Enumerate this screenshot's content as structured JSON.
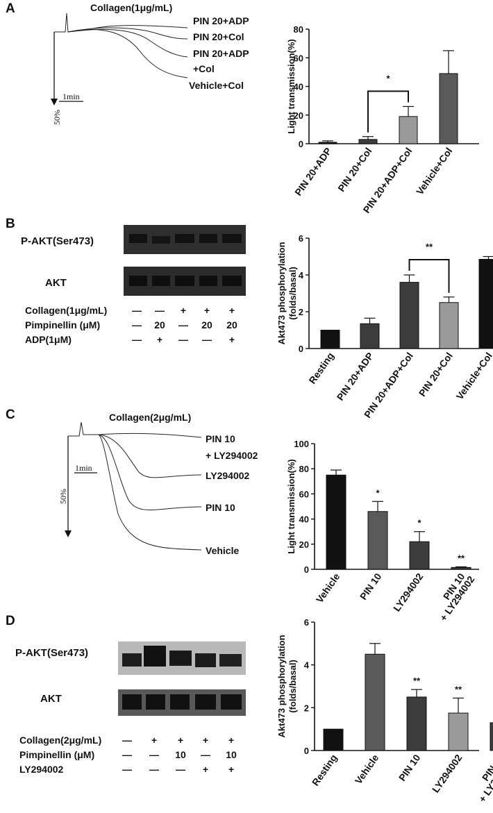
{
  "colors": {
    "black": "#111111",
    "dark_gray": "#3c3c3c",
    "mid_gray": "#5a5a5a",
    "light_gray": "#9a9a9a",
    "blot_band": "#2a2a2a"
  },
  "panels": {
    "A": {
      "label": "A",
      "trace_title": "Collagen(1μg/mL)",
      "time_scale": "1min",
      "scale_bar": "50%",
      "trace_labels": [
        "PIN 20+ADP",
        "PIN 20+Col",
        "PIN 20+ADP",
        "+Col",
        "Vehicle+Col"
      ]
    },
    "B": {
      "label": "B",
      "blot_labels": [
        "P-AKT(Ser473)",
        "AKT"
      ],
      "treatments": [
        {
          "name": "Collagen(1μg/mL)",
          "marks": [
            "—",
            "—",
            "+",
            "+",
            "+"
          ]
        },
        {
          "name": "Pimpinellin (μM)",
          "marks": [
            "—",
            "20",
            "—",
            "20",
            "20"
          ]
        },
        {
          "name": "ADP(1μM)",
          "marks": [
            "—",
            "+",
            "—",
            "—",
            "+"
          ]
        }
      ]
    },
    "C": {
      "label": "C",
      "trace_title": "Collagen(2μg/mL)",
      "time_scale": "1min",
      "scale_bar": "50%",
      "trace_labels": [
        "PIN 10",
        "+ LY294002",
        "LY294002",
        "PIN 10",
        "Vehicle"
      ]
    },
    "D": {
      "label": "D",
      "blot_labels": [
        "P-AKT(Ser473)",
        "AKT"
      ],
      "treatments": [
        {
          "name": "Collagen(2μg/mL)",
          "marks": [
            "—",
            "+",
            "+",
            "+",
            "+"
          ]
        },
        {
          "name": "Pimpinellin (μM)",
          "marks": [
            "—",
            "—",
            "10",
            "—",
            "10"
          ]
        },
        {
          "name": "LY294002",
          "marks": [
            "—",
            "—",
            "—",
            "+",
            "+"
          ]
        }
      ]
    }
  },
  "chart_data": [
    {
      "type": "bar",
      "panel": "A",
      "ylabel": "Light transmission(%)",
      "ylim": [
        0,
        80
      ],
      "yticks": [
        0,
        20,
        40,
        60,
        80
      ],
      "categories": [
        "PIN 20+ADP",
        "PIN 20+Col",
        "PIN 20+ADP+Col",
        "Vehicle+Col"
      ],
      "values": [
        1,
        3,
        19,
        49
      ],
      "errors": [
        1,
        2,
        7,
        16
      ],
      "bar_colors": [
        "#111111",
        "#3c3c3c",
        "#9a9a9a",
        "#5a5a5a"
      ],
      "significance": [
        {
          "from": 1,
          "to": 2,
          "label": "*"
        }
      ]
    },
    {
      "type": "bar",
      "panel": "B",
      "ylabel": "Akt473 phosphorylation (folds/basal)",
      "ylim": [
        0,
        6
      ],
      "yticks": [
        0,
        2,
        4,
        6
      ],
      "categories": [
        "Resting",
        "PIN 20+ADP",
        "PIN 20+ADP+Col",
        "PIN 20+Col",
        "Vehicle+Col"
      ],
      "values": [
        1.0,
        1.35,
        3.6,
        2.5,
        4.85
      ],
      "errors": [
        0,
        0.3,
        0.4,
        0.3,
        0.15
      ],
      "bar_colors": [
        "#111111",
        "#3c3c3c",
        "#3c3c3c",
        "#9a9a9a",
        "#111111"
      ],
      "significance": [
        {
          "from": 2,
          "to": 3,
          "label": "**"
        }
      ]
    },
    {
      "type": "bar",
      "panel": "C",
      "ylabel": "Light transmission(%)",
      "ylim": [
        0,
        100
      ],
      "yticks": [
        0,
        20,
        40,
        60,
        80,
        100
      ],
      "categories": [
        "Vehicle",
        "PIN 10",
        "LY294002",
        "PIN 10\n+ LY294002"
      ],
      "values": [
        75,
        46,
        22,
        1.5
      ],
      "errors": [
        4,
        8,
        8,
        0.5
      ],
      "bar_colors": [
        "#111111",
        "#5a5a5a",
        "#3c3c3c",
        "#3c3c3c"
      ],
      "bar_annotations": [
        "",
        "*",
        "*",
        "**"
      ]
    },
    {
      "type": "bar",
      "panel": "D",
      "ylabel": "Akt473 phosphorylation (folds/basal)",
      "ylim": [
        0,
        6
      ],
      "yticks": [
        0,
        2,
        4,
        6
      ],
      "categories": [
        "Resting",
        "Vehicle",
        "PIN 10",
        "LY294002",
        "PIN 10\n+ LY294002"
      ],
      "values": [
        1.0,
        4.5,
        2.5,
        1.75,
        1.3
      ],
      "errors": [
        0,
        0.5,
        0.35,
        0.7,
        0.15
      ],
      "bar_colors": [
        "#111111",
        "#5a5a5a",
        "#3c3c3c",
        "#9a9a9a",
        "#3c3c3c"
      ],
      "bar_annotations": [
        "",
        "",
        "**",
        "**",
        "***"
      ]
    }
  ]
}
